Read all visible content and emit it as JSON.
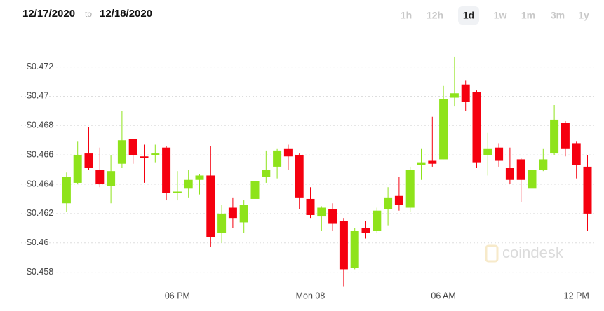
{
  "header": {
    "from": "12/17/2020",
    "to_word": "to",
    "to": "12/18/2020",
    "ranges": [
      "1h",
      "12h",
      "1d",
      "1w",
      "1m",
      "3m",
      "1y"
    ],
    "selected_range": 2
  },
  "watermark": "coindesk",
  "chart_data": {
    "type": "candlestick",
    "categories": [
      null,
      null,
      null,
      null,
      null,
      null,
      null,
      null,
      null,
      null,
      "06 PM",
      null,
      null,
      null,
      null,
      null,
      null,
      null,
      null,
      null,
      null,
      null,
      "Mon 08",
      null,
      null,
      null,
      null,
      null,
      null,
      null,
      null,
      null,
      null,
      null,
      "06 AM",
      null,
      null,
      null,
      null,
      null,
      null,
      null,
      null,
      null,
      null,
      null,
      "12 PM",
      null
    ],
    "open": [
      0.4627,
      0.4641,
      0.4661,
      0.465,
      0.4639,
      0.4654,
      0.4671,
      0.4659,
      0.466,
      0.4665,
      0.4634,
      0.4637,
      0.4643,
      0.4646,
      0.4607,
      0.4624,
      0.4614,
      0.463,
      0.4645,
      0.4652,
      0.4664,
      0.466,
      0.463,
      0.4618,
      0.4623,
      0.4615,
      0.4583,
      0.461,
      0.4608,
      0.4623,
      0.4632,
      0.4624,
      0.4653,
      0.4656,
      0.4657,
      0.4699,
      0.4708,
      0.4703,
      0.466,
      0.4665,
      0.4651,
      0.4657,
      0.4637,
      0.465,
      0.4661,
      0.4682,
      0.4668,
      0.4652
    ],
    "high": [
      0.4648,
      0.4669,
      0.4679,
      0.4665,
      0.466,
      0.469,
      0.4671,
      0.4667,
      0.4667,
      0.4666,
      0.4649,
      0.465,
      0.4647,
      0.4666,
      0.4626,
      0.4631,
      0.4629,
      0.4667,
      0.4663,
      0.4664,
      0.4667,
      0.4661,
      0.4638,
      0.4625,
      0.4627,
      0.4617,
      0.461,
      0.4615,
      0.4624,
      0.4638,
      0.4645,
      0.4652,
      0.4664,
      0.4686,
      0.4707,
      0.4727,
      0.4711,
      0.4704,
      0.4675,
      0.4668,
      0.4665,
      0.4658,
      0.4658,
      0.4664,
      0.4694,
      0.4683,
      0.4669,
      0.466
    ],
    "low": [
      0.4621,
      0.464,
      0.465,
      0.4638,
      0.4627,
      0.4651,
      0.4654,
      0.4641,
      0.4655,
      0.4629,
      0.4629,
      0.4631,
      0.4633,
      0.4597,
      0.46,
      0.461,
      0.4607,
      0.4629,
      0.4641,
      0.4644,
      0.465,
      0.4623,
      0.4617,
      0.4608,
      0.4608,
      0.457,
      0.4582,
      0.4603,
      0.4607,
      0.4612,
      0.4622,
      0.4621,
      0.4643,
      0.4652,
      0.4657,
      0.4693,
      0.469,
      0.4651,
      0.4646,
      0.4652,
      0.464,
      0.4628,
      0.4636,
      0.4649,
      0.466,
      0.4659,
      0.4644,
      0.4608
    ],
    "close": [
      0.4645,
      0.466,
      0.4651,
      0.464,
      0.4649,
      0.467,
      0.466,
      0.4658,
      0.4661,
      0.4634,
      0.4635,
      0.4643,
      0.4646,
      0.4604,
      0.462,
      0.4617,
      0.4626,
      0.4642,
      0.465,
      0.4663,
      0.4659,
      0.4631,
      0.4619,
      0.4624,
      0.4613,
      0.4582,
      0.4608,
      0.4607,
      0.4622,
      0.4631,
      0.4626,
      0.465,
      0.4655,
      0.4654,
      0.4698,
      0.4702,
      0.4696,
      0.4655,
      0.4664,
      0.4656,
      0.4643,
      0.4643,
      0.465,
      0.4657,
      0.4684,
      0.4664,
      0.4653,
      0.462
    ],
    "up_color": "#8ee31b",
    "down_color": "#f5000f",
    "ylim": [
      0.4565,
      0.4737
    ],
    "yticks": [
      {
        "value": 0.458,
        "label": "$0.458"
      },
      {
        "value": 0.46,
        "label": "$0.46"
      },
      {
        "value": 0.462,
        "label": "$0.462"
      },
      {
        "value": 0.464,
        "label": "$0.464"
      },
      {
        "value": 0.466,
        "label": "$0.466"
      },
      {
        "value": 0.468,
        "label": "$0.468"
      },
      {
        "value": 0.47,
        "label": "$0.47"
      },
      {
        "value": 0.472,
        "label": "$0.472"
      }
    ],
    "grid": true
  }
}
